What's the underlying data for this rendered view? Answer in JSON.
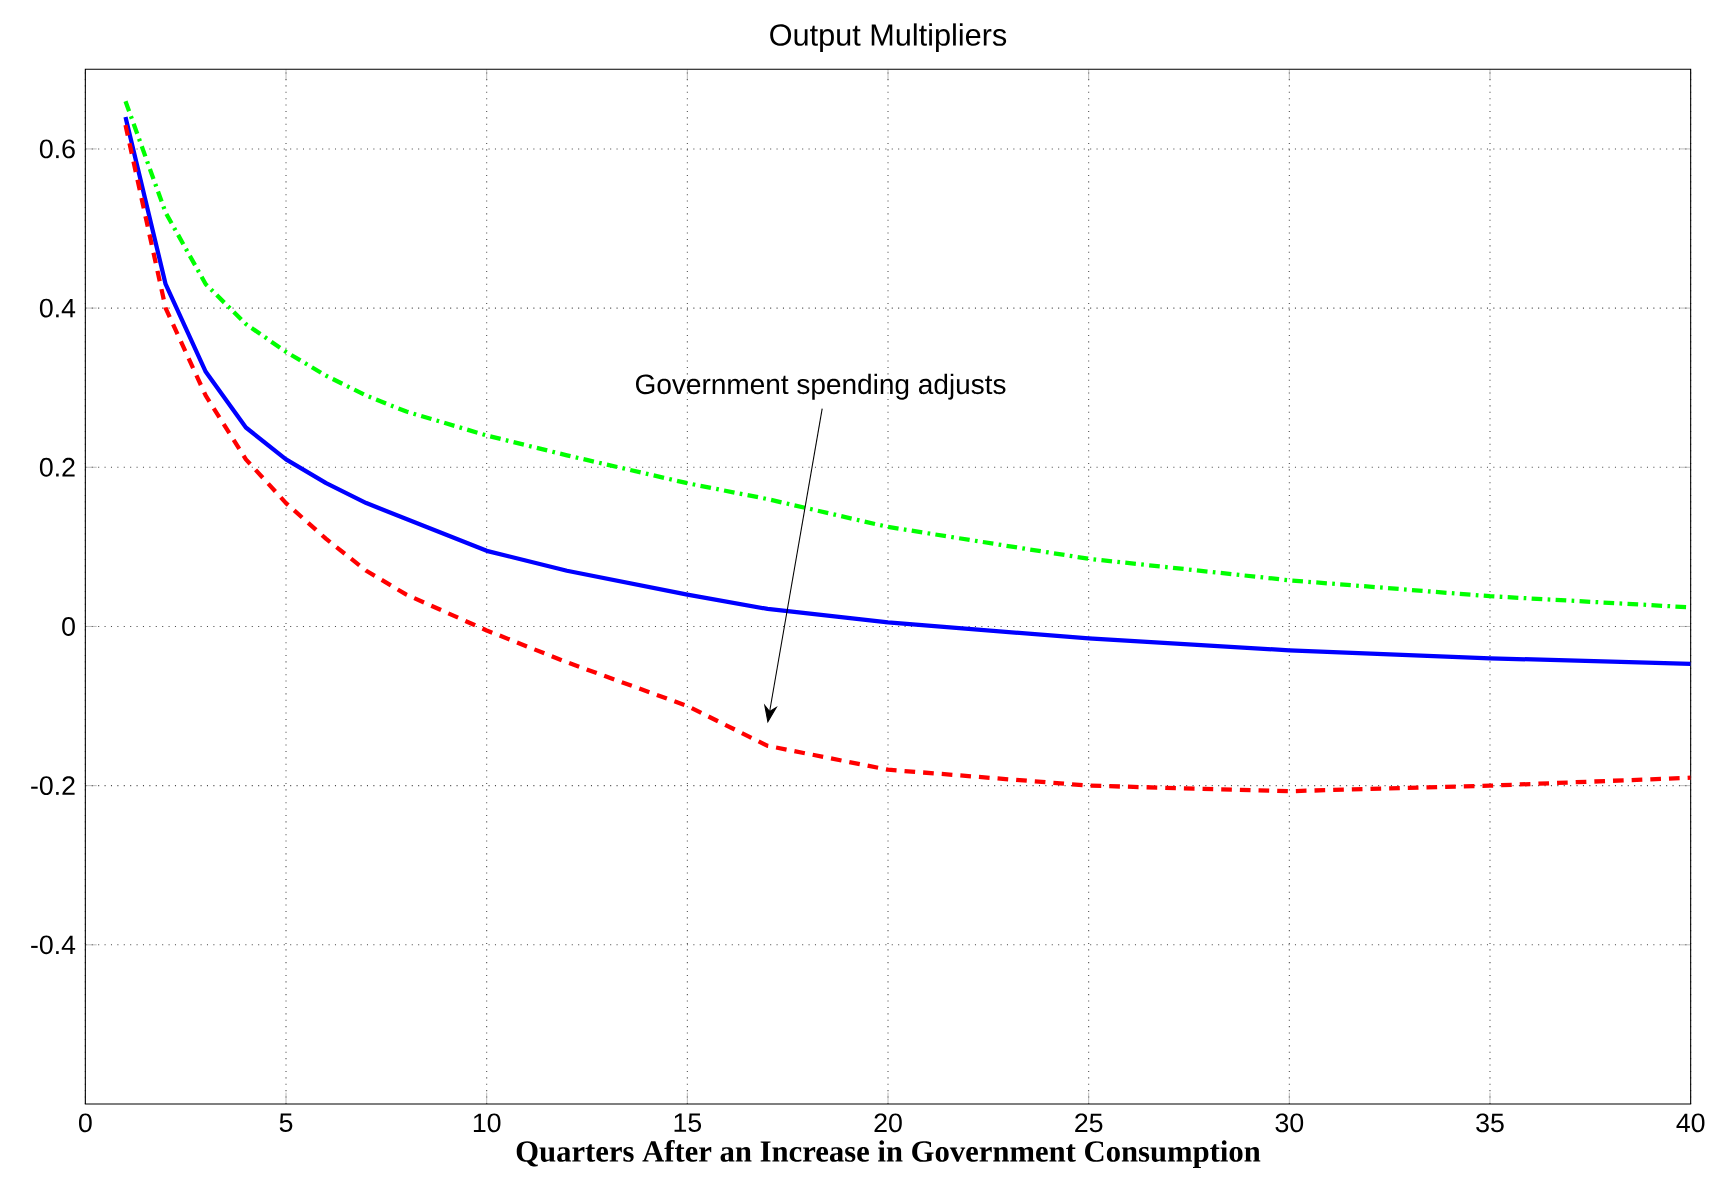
{
  "chart_data": {
    "type": "line",
    "title": "Output Multipliers",
    "xlabel": "Quarters After an Increase in Government Consumption",
    "x": [
      1,
      2,
      3,
      4,
      5,
      6,
      7,
      8,
      10,
      12,
      15,
      17,
      20,
      25,
      30,
      35,
      40
    ],
    "series": [
      {
        "color": "#0000ff",
        "line_style": "solid",
        "values": [
          0.64,
          0.43,
          0.32,
          0.25,
          0.21,
          0.18,
          0.155,
          0.135,
          0.095,
          0.07,
          0.04,
          0.022,
          0.005,
          -0.015,
          -0.03,
          -0.04,
          -0.047
        ]
      },
      {
        "color": "#ff0000",
        "line_style": "dashed",
        "values": [
          0.63,
          0.4,
          0.29,
          0.21,
          0.155,
          0.11,
          0.07,
          0.04,
          -0.005,
          -0.045,
          -0.1,
          -0.15,
          -0.18,
          -0.2,
          -0.207,
          -0.2,
          -0.19
        ]
      },
      {
        "color": "#00ff00",
        "line_style": "dashdot",
        "values": [
          0.66,
          0.52,
          0.43,
          0.38,
          0.345,
          0.315,
          0.29,
          0.27,
          0.24,
          0.215,
          0.18,
          0.16,
          0.125,
          0.085,
          0.058,
          0.038,
          0.024
        ]
      }
    ],
    "xlim": [
      0,
      40
    ],
    "xticks": [
      0,
      5,
      10,
      15,
      20,
      25,
      30,
      35,
      40
    ],
    "ylim": [
      -0.6,
      0.7
    ],
    "yticks": [
      -0.4,
      -0.2,
      0,
      0.2,
      0.4,
      0.6
    ],
    "grid": true,
    "annotations": [
      "Government spending adjusts"
    ]
  }
}
